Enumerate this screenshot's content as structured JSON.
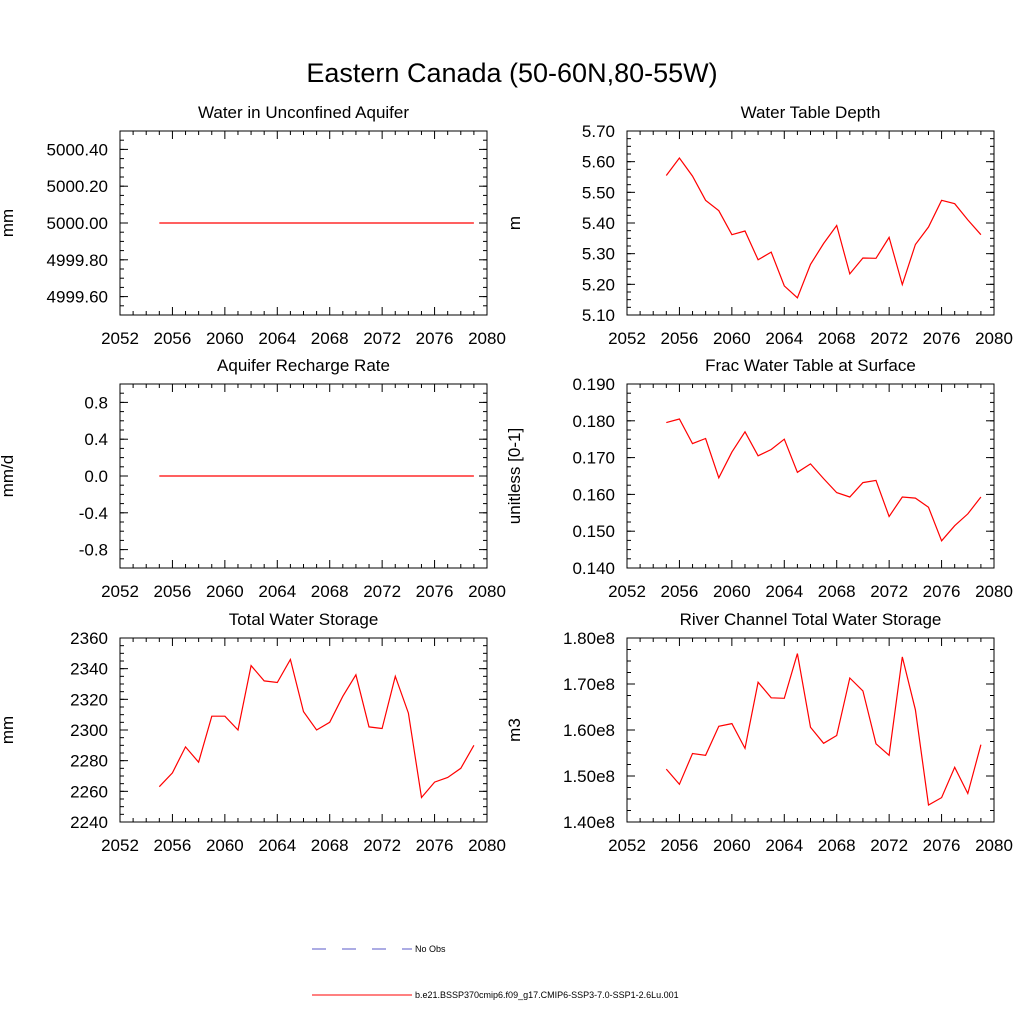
{
  "figure_title": "Eastern Canada (50-60N,80-55W)",
  "colors": {
    "model": "#ff0000",
    "obs": "#5a5ac8",
    "axis": "#000000"
  },
  "chart_data": [
    {
      "type": "line",
      "title": "Water in Unconfined Aquifer",
      "ylabel": "mm",
      "xlim": [
        2052,
        2080
      ],
      "xticks": [
        "2052",
        "2056",
        "2060",
        "2064",
        "2068",
        "2072",
        "2076",
        "2080"
      ],
      "ylim": [
        4999.5,
        5000.5
      ],
      "yticks": [
        {
          "v": 4999.6,
          "label": "4999.60"
        },
        {
          "v": 4999.8,
          "label": "4999.80"
        },
        {
          "v": 5000.0,
          "label": "5000.00"
        },
        {
          "v": 5000.2,
          "label": "5000.20"
        },
        {
          "v": 5000.4,
          "label": "5000.40"
        }
      ],
      "x": [
        2055,
        2079
      ],
      "series": [
        {
          "values": [
            5000.0,
            5000.0
          ]
        }
      ]
    },
    {
      "type": "line",
      "title": "Water Table Depth",
      "ylabel": "m",
      "xlim": [
        2052,
        2080
      ],
      "xticks": [
        "2052",
        "2056",
        "2060",
        "2064",
        "2068",
        "2072",
        "2076",
        "2080"
      ],
      "ylim": [
        5.1,
        5.7
      ],
      "yticks": [
        {
          "v": 5.1,
          "label": "5.10"
        },
        {
          "v": 5.2,
          "label": "5.20"
        },
        {
          "v": 5.3,
          "label": "5.30"
        },
        {
          "v": 5.4,
          "label": "5.40"
        },
        {
          "v": 5.5,
          "label": "5.50"
        },
        {
          "v": 5.6,
          "label": "5.60"
        },
        {
          "v": 5.7,
          "label": "5.70"
        }
      ],
      "x": [
        2055,
        2056,
        2057,
        2058,
        2059,
        2060,
        2061,
        2062,
        2063,
        2064,
        2065,
        2066,
        2067,
        2068,
        2069,
        2070,
        2071,
        2072,
        2073,
        2074,
        2075,
        2076,
        2077,
        2078,
        2079
      ],
      "series": [
        {
          "values": [
            5.555,
            5.612,
            5.553,
            5.474,
            5.44,
            5.362,
            5.374,
            5.28,
            5.305,
            5.195,
            5.156,
            5.265,
            5.333,
            5.392,
            5.234,
            5.286,
            5.285,
            5.353,
            5.199,
            5.33,
            5.387,
            5.474,
            5.463,
            5.41,
            5.362
          ]
        }
      ]
    },
    {
      "type": "line",
      "title": "Aquifer Recharge Rate",
      "ylabel": "mm/d",
      "xlim": [
        2052,
        2080
      ],
      "xticks": [
        "2052",
        "2056",
        "2060",
        "2064",
        "2068",
        "2072",
        "2076",
        "2080"
      ],
      "ylim": [
        -1.0,
        1.0
      ],
      "yticks": [
        {
          "v": -0.8,
          "label": "-0.8"
        },
        {
          "v": -0.4,
          "label": "-0.4"
        },
        {
          "v": 0.0,
          "label": "0.0"
        },
        {
          "v": 0.4,
          "label": "0.4"
        },
        {
          "v": 0.8,
          "label": "0.8"
        }
      ],
      "x": [
        2055,
        2079
      ],
      "series": [
        {
          "values": [
            0.0,
            0.0
          ]
        }
      ]
    },
    {
      "type": "line",
      "title": "Frac Water Table at Surface",
      "ylabel": "unitless [0-1]",
      "xlim": [
        2052,
        2080
      ],
      "xticks": [
        "2052",
        "2056",
        "2060",
        "2064",
        "2068",
        "2072",
        "2076",
        "2080"
      ],
      "ylim": [
        0.14,
        0.19
      ],
      "yticks": [
        {
          "v": 0.14,
          "label": "0.140"
        },
        {
          "v": 0.15,
          "label": "0.150"
        },
        {
          "v": 0.16,
          "label": "0.160"
        },
        {
          "v": 0.17,
          "label": "0.170"
        },
        {
          "v": 0.18,
          "label": "0.180"
        },
        {
          "v": 0.19,
          "label": "0.190"
        }
      ],
      "x": [
        2055,
        2056,
        2057,
        2058,
        2059,
        2060,
        2061,
        2062,
        2063,
        2064,
        2065,
        2066,
        2067,
        2068,
        2069,
        2070,
        2071,
        2072,
        2073,
        2074,
        2075,
        2076,
        2077,
        2078,
        2079
      ],
      "series": [
        {
          "values": [
            0.1795,
            0.1805,
            0.1738,
            0.1752,
            0.1645,
            0.1715,
            0.177,
            0.1705,
            0.1722,
            0.175,
            0.166,
            0.1683,
            0.1643,
            0.1605,
            0.1593,
            0.1632,
            0.1638,
            0.154,
            0.1593,
            0.159,
            0.1565,
            0.1474,
            0.1515,
            0.1547,
            0.1593
          ]
        }
      ]
    },
    {
      "type": "line",
      "title": "Total Water Storage",
      "ylabel": "mm",
      "xlim": [
        2052,
        2080
      ],
      "xticks": [
        "2052",
        "2056",
        "2060",
        "2064",
        "2068",
        "2072",
        "2076",
        "2080"
      ],
      "ylim": [
        2240,
        2360
      ],
      "yticks": [
        {
          "v": 2240,
          "label": "2240"
        },
        {
          "v": 2260,
          "label": "2260"
        },
        {
          "v": 2280,
          "label": "2280"
        },
        {
          "v": 2300,
          "label": "2300"
        },
        {
          "v": 2320,
          "label": "2320"
        },
        {
          "v": 2340,
          "label": "2340"
        },
        {
          "v": 2360,
          "label": "2360"
        }
      ],
      "x": [
        2055,
        2056,
        2057,
        2058,
        2059,
        2060,
        2061,
        2062,
        2063,
        2064,
        2065,
        2066,
        2067,
        2068,
        2069,
        2070,
        2071,
        2072,
        2073,
        2074,
        2075,
        2076,
        2077,
        2078,
        2079
      ],
      "series": [
        {
          "values": [
            2263,
            2272,
            2289,
            2279,
            2309,
            2309,
            2300,
            2342,
            2332,
            2331,
            2346,
            2312,
            2300,
            2305,
            2322,
            2336,
            2302,
            2301,
            2335,
            2311,
            2256,
            2266,
            2269,
            2275,
            2290
          ]
        }
      ]
    },
    {
      "type": "line",
      "title": "River Channel Total Water Storage",
      "ylabel": "m3",
      "xlim": [
        2052,
        2080
      ],
      "xticks": [
        "2052",
        "2056",
        "2060",
        "2064",
        "2068",
        "2072",
        "2076",
        "2080"
      ],
      "ylim": [
        140000000,
        180000000
      ],
      "yticks": [
        {
          "v": 140000000,
          "label": "1.40e8"
        },
        {
          "v": 150000000,
          "label": "1.50e8"
        },
        {
          "v": 160000000,
          "label": "1.60e8"
        },
        {
          "v": 170000000,
          "label": "1.70e8"
        },
        {
          "v": 180000000,
          "label": "1.80e8"
        }
      ],
      "x": [
        2055,
        2056,
        2057,
        2058,
        2059,
        2060,
        2061,
        2062,
        2063,
        2064,
        2065,
        2066,
        2067,
        2068,
        2069,
        2070,
        2071,
        2072,
        2073,
        2074,
        2075,
        2076,
        2077,
        2078,
        2079
      ],
      "series": [
        {
          "values": [
            151500000,
            148200000,
            154900000,
            154500000,
            160800000,
            161400000,
            156000000,
            170400000,
            167000000,
            166900000,
            176600000,
            160600000,
            157100000,
            158800000,
            171300000,
            168500000,
            157000000,
            154500000,
            175900000,
            164400000,
            143700000,
            145300000,
            151900000,
            146200000,
            156800000
          ]
        }
      ]
    }
  ],
  "legend": [
    {
      "label": "No Obs",
      "style": "dashed"
    },
    {
      "label": "b.e21.BSSP370cmip6.f09_g17.CMIP6-SSP3-7.0-SSP1-2.6Lu.001",
      "style": "solid"
    }
  ]
}
